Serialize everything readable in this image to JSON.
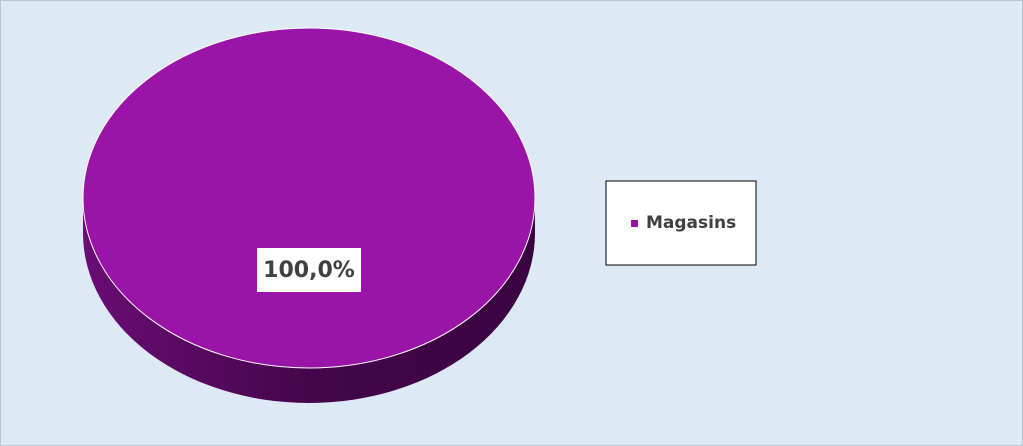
{
  "chart_data": {
    "type": "pie",
    "categories": [
      "Magasins"
    ],
    "values": [
      100
    ],
    "value_labels": [
      "100,0%"
    ],
    "colors": [
      "#9b14a8"
    ],
    "legend": "right"
  }
}
